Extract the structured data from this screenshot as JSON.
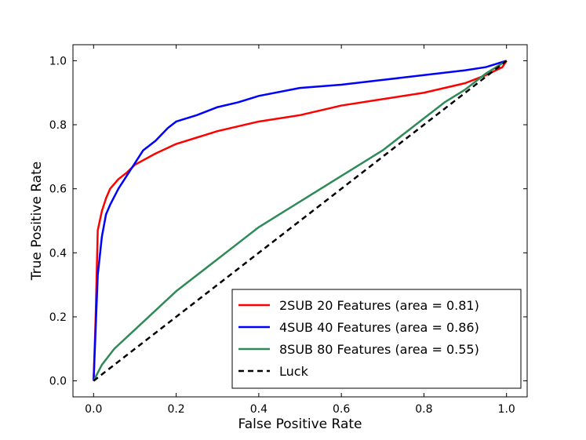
{
  "chart_data": {
    "type": "line",
    "title": "",
    "xlabel": "False Positive Rate",
    "ylabel": "True Positive Rate",
    "xlim": [
      -0.05,
      1.05
    ],
    "ylim": [
      -0.05,
      1.05
    ],
    "xticks": [
      0.0,
      0.2,
      0.4,
      0.6,
      0.8,
      1.0
    ],
    "yticks": [
      0.0,
      0.2,
      0.4,
      0.6,
      0.8,
      1.0
    ],
    "xtick_labels": [
      "0.0",
      "0.2",
      "0.4",
      "0.6",
      "0.8",
      "1.0"
    ],
    "ytick_labels": [
      "0.0",
      "0.2",
      "0.4",
      "0.6",
      "0.8",
      "1.0"
    ],
    "grid": false,
    "legend_position": "lower-right",
    "series": [
      {
        "name": "2SUB 20 Features (area = 0.81)",
        "color": "#ff0000",
        "style": "solid",
        "x": [
          0.0,
          0.005,
          0.01,
          0.02,
          0.03,
          0.04,
          0.06,
          0.08,
          0.1,
          0.15,
          0.2,
          0.25,
          0.3,
          0.35,
          0.4,
          0.5,
          0.6,
          0.7,
          0.8,
          0.9,
          0.95,
          0.99,
          1.0
        ],
        "y": [
          0.0,
          0.2,
          0.47,
          0.53,
          0.57,
          0.6,
          0.63,
          0.65,
          0.675,
          0.71,
          0.74,
          0.76,
          0.78,
          0.795,
          0.81,
          0.83,
          0.86,
          0.88,
          0.9,
          0.93,
          0.955,
          0.98,
          1.0
        ]
      },
      {
        "name": "4SUB 40 Features (area = 0.86)",
        "color": "#0000ff",
        "style": "solid",
        "x": [
          0.0,
          0.01,
          0.02,
          0.03,
          0.04,
          0.06,
          0.08,
          0.1,
          0.12,
          0.15,
          0.18,
          0.2,
          0.25,
          0.3,
          0.35,
          0.4,
          0.5,
          0.6,
          0.7,
          0.8,
          0.9,
          0.95,
          1.0
        ],
        "y": [
          0.0,
          0.33,
          0.45,
          0.52,
          0.55,
          0.6,
          0.64,
          0.68,
          0.72,
          0.75,
          0.79,
          0.81,
          0.83,
          0.855,
          0.87,
          0.89,
          0.915,
          0.925,
          0.94,
          0.955,
          0.97,
          0.98,
          1.0
        ]
      },
      {
        "name": "8SUB 80 Features (area = 0.55)",
        "color": "#2e8b57",
        "style": "solid",
        "x": [
          0.0,
          0.02,
          0.05,
          0.1,
          0.15,
          0.2,
          0.25,
          0.3,
          0.35,
          0.4,
          0.45,
          0.5,
          0.55,
          0.6,
          0.65,
          0.7,
          0.75,
          0.8,
          0.85,
          0.9,
          0.95,
          1.0
        ],
        "y": [
          0.0,
          0.05,
          0.1,
          0.16,
          0.22,
          0.28,
          0.33,
          0.38,
          0.43,
          0.48,
          0.52,
          0.56,
          0.6,
          0.64,
          0.68,
          0.72,
          0.77,
          0.82,
          0.87,
          0.91,
          0.96,
          1.0
        ]
      },
      {
        "name": "Luck",
        "color": "#000000",
        "style": "dashed",
        "x": [
          0.0,
          1.0
        ],
        "y": [
          0.0,
          1.0
        ]
      }
    ]
  }
}
